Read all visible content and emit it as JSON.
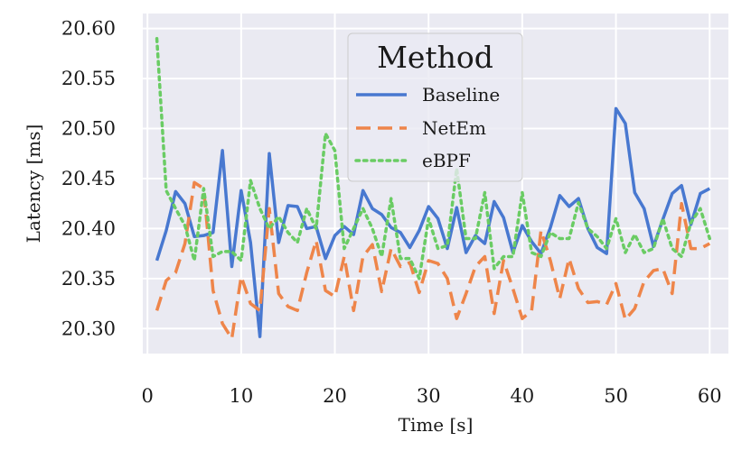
{
  "chart_data": {
    "type": "line",
    "xlabel": "Time [s]",
    "ylabel": "Latency [ms]",
    "xlim": [
      -0.5,
      62
    ],
    "ylim": [
      20.275,
      20.615
    ],
    "xticks": [
      0,
      10,
      20,
      30,
      40,
      50,
      60
    ],
    "yticks": [
      20.3,
      20.35,
      20.4,
      20.45,
      20.5,
      20.55,
      20.6
    ],
    "grid": true,
    "legend": {
      "title": "Method",
      "position": "top-center"
    },
    "x": [
      1,
      2,
      3,
      4,
      5,
      6,
      7,
      8,
      9,
      10,
      11,
      12,
      13,
      14,
      15,
      16,
      17,
      18,
      19,
      20,
      21,
      22,
      23,
      24,
      25,
      26,
      27,
      28,
      29,
      30,
      31,
      32,
      33,
      34,
      35,
      36,
      37,
      38,
      39,
      40,
      41,
      42,
      43,
      44,
      45,
      46,
      47,
      48,
      49,
      50,
      51,
      52,
      53,
      54,
      55,
      56,
      57,
      58,
      59,
      60
    ],
    "series": [
      {
        "name": "Baseline",
        "color": "#4878d0",
        "style": "solid",
        "values": [
          20.368,
          20.398,
          20.437,
          20.425,
          20.392,
          20.393,
          20.396,
          20.478,
          20.362,
          20.438,
          20.386,
          20.292,
          20.475,
          20.386,
          20.423,
          20.422,
          20.4,
          20.402,
          20.37,
          20.393,
          20.402,
          20.394,
          20.438,
          20.42,
          20.414,
          20.401,
          20.396,
          20.381,
          20.398,
          20.422,
          20.41,
          20.38,
          20.421,
          20.376,
          20.393,
          20.385,
          20.427,
          20.411,
          20.376,
          20.403,
          20.387,
          20.375,
          20.401,
          20.433,
          20.422,
          20.43,
          20.4,
          20.381,
          20.375,
          20.52,
          20.505,
          20.436,
          20.42,
          20.382,
          20.409,
          20.435,
          20.443,
          20.404,
          20.435,
          20.44
        ]
      },
      {
        "name": "NetEm",
        "color": "#ee854a",
        "style": "dashed",
        "values": [
          20.318,
          20.348,
          20.356,
          20.385,
          20.446,
          20.44,
          20.338,
          20.305,
          20.29,
          20.352,
          20.325,
          20.318,
          20.42,
          20.335,
          20.322,
          20.318,
          20.356,
          20.388,
          20.338,
          20.332,
          20.372,
          20.318,
          20.372,
          20.384,
          20.337,
          20.38,
          20.362,
          20.366,
          20.336,
          20.368,
          20.365,
          20.35,
          20.31,
          20.335,
          20.362,
          20.372,
          20.315,
          20.368,
          20.34,
          20.31,
          20.318,
          20.398,
          20.368,
          20.33,
          20.37,
          20.34,
          20.326,
          20.327,
          20.324,
          20.345,
          20.309,
          20.32,
          20.347,
          20.358,
          20.36,
          20.335,
          20.425,
          20.38,
          20.38,
          20.385
        ]
      },
      {
        "name": "eBPF",
        "color": "#6acc64",
        "style": "dotted",
        "values": [
          20.59,
          20.438,
          20.42,
          20.403,
          20.368,
          20.44,
          20.372,
          20.377,
          20.377,
          20.368,
          20.448,
          20.42,
          20.4,
          20.412,
          20.396,
          20.386,
          20.42,
          20.4,
          20.495,
          20.478,
          20.38,
          20.4,
          20.42,
          20.4,
          20.372,
          20.43,
          20.37,
          20.37,
          20.35,
          20.41,
          20.38,
          20.383,
          20.46,
          20.39,
          20.39,
          20.436,
          20.36,
          20.372,
          20.372,
          20.436,
          20.376,
          20.372,
          20.396,
          20.39,
          20.39,
          20.426,
          20.4,
          20.392,
          20.38,
          20.41,
          20.376,
          20.394,
          20.376,
          20.38,
          20.41,
          20.38,
          20.372,
          20.406,
          20.42,
          20.39
        ]
      }
    ]
  }
}
